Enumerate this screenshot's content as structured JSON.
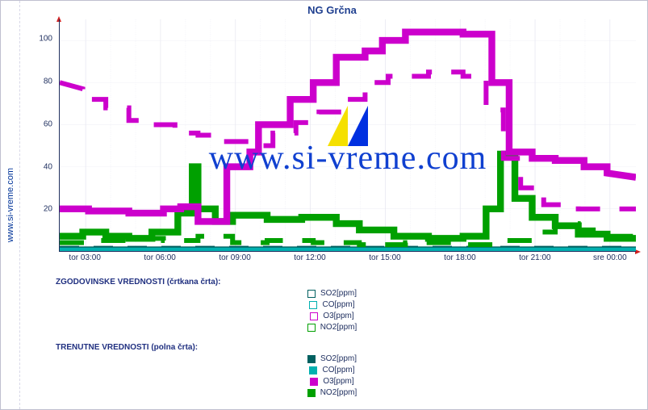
{
  "title": "NG Grčna",
  "side_link": {
    "text": "www.si-vreme.com"
  },
  "watermark": {
    "text": "www.si-vreme.com"
  },
  "legend": {
    "hist_title": "ZGODOVINSKE VREDNOSTI (črtkana črta):",
    "curr_title": "TRENUTNE VREDNOSTI (polna črta):",
    "items": [
      {
        "label": "SO2[ppm]",
        "color": "#006060"
      },
      {
        "label": "CO[ppm]",
        "color": "#00b0b0"
      },
      {
        "label": "O3[ppm]",
        "color": "#cc00cc"
      },
      {
        "label": "NO2[ppm]",
        "color": "#00a000"
      }
    ]
  },
  "chart": {
    "type": "line-step",
    "background_color": "#ffffff",
    "grid_color": "#e6e6f0",
    "border_color": "#c0c0d0",
    "axis_color": "#203060",
    "axis_arrow_color": "#d02020",
    "title_fontsize": 13,
    "label_fontsize": 10,
    "title_color": "#204090",
    "label_color": "#203060",
    "watermark_color": "#1040d0",
    "watermark_fontsize": 42,
    "ylim": [
      0,
      110
    ],
    "ytick_step": 20,
    "yticks": [
      20,
      40,
      60,
      80,
      100
    ],
    "x_categories": [
      "tor 03:00",
      "tor 06:00",
      "tor 09:00",
      "tor 12:00",
      "tor 15:00",
      "tor 18:00",
      "tor 21:00",
      "sre 00:00"
    ],
    "x_major_positions": [
      0.045,
      0.175,
      0.305,
      0.435,
      0.565,
      0.695,
      0.825,
      0.955
    ],
    "series": {
      "O3_current": {
        "color": "#cc00cc",
        "dash": "none",
        "width": 1.4,
        "points": [
          [
            0.0,
            20
          ],
          [
            0.05,
            20
          ],
          [
            0.05,
            19
          ],
          [
            0.12,
            19
          ],
          [
            0.12,
            18
          ],
          [
            0.18,
            18
          ],
          [
            0.18,
            20
          ],
          [
            0.21,
            20
          ],
          [
            0.21,
            21
          ],
          [
            0.24,
            21
          ],
          [
            0.24,
            14
          ],
          [
            0.29,
            14
          ],
          [
            0.29,
            40
          ],
          [
            0.33,
            40
          ],
          [
            0.33,
            47
          ],
          [
            0.345,
            47
          ],
          [
            0.345,
            60
          ],
          [
            0.4,
            60
          ],
          [
            0.4,
            72
          ],
          [
            0.44,
            72
          ],
          [
            0.44,
            80
          ],
          [
            0.48,
            80
          ],
          [
            0.48,
            92
          ],
          [
            0.53,
            92
          ],
          [
            0.53,
            95
          ],
          [
            0.56,
            95
          ],
          [
            0.56,
            100
          ],
          [
            0.6,
            100
          ],
          [
            0.6,
            104
          ],
          [
            0.7,
            104
          ],
          [
            0.7,
            103
          ],
          [
            0.75,
            103
          ],
          [
            0.75,
            80
          ],
          [
            0.78,
            80
          ],
          [
            0.78,
            47
          ],
          [
            0.82,
            47
          ],
          [
            0.82,
            44
          ],
          [
            0.86,
            44
          ],
          [
            0.86,
            43
          ],
          [
            0.91,
            43
          ],
          [
            0.91,
            40
          ],
          [
            0.95,
            40
          ],
          [
            0.95,
            37
          ],
          [
            1.0,
            35
          ]
        ]
      },
      "O3_hist": {
        "color": "#cc00cc",
        "dash": "5,4",
        "width": 1.0,
        "points": [
          [
            0.0,
            80
          ],
          [
            0.04,
            77
          ],
          [
            0.04,
            72
          ],
          [
            0.08,
            72
          ],
          [
            0.08,
            68
          ],
          [
            0.12,
            68
          ],
          [
            0.12,
            62
          ],
          [
            0.16,
            62
          ],
          [
            0.16,
            60
          ],
          [
            0.2,
            60
          ],
          [
            0.2,
            56
          ],
          [
            0.24,
            56
          ],
          [
            0.24,
            55
          ],
          [
            0.28,
            55
          ],
          [
            0.28,
            52
          ],
          [
            0.33,
            52
          ],
          [
            0.33,
            50
          ],
          [
            0.37,
            50
          ],
          [
            0.37,
            56
          ],
          [
            0.41,
            56
          ],
          [
            0.41,
            61
          ],
          [
            0.45,
            61
          ],
          [
            0.45,
            66
          ],
          [
            0.49,
            66
          ],
          [
            0.49,
            72
          ],
          [
            0.53,
            72
          ],
          [
            0.53,
            80
          ],
          [
            0.57,
            80
          ],
          [
            0.57,
            83
          ],
          [
            0.64,
            83
          ],
          [
            0.64,
            85
          ],
          [
            0.7,
            85
          ],
          [
            0.7,
            83
          ],
          [
            0.74,
            83
          ],
          [
            0.74,
            67
          ],
          [
            0.77,
            67
          ],
          [
            0.77,
            44
          ],
          [
            0.8,
            44
          ],
          [
            0.8,
            30
          ],
          [
            0.84,
            30
          ],
          [
            0.84,
            22
          ],
          [
            0.9,
            22
          ],
          [
            0.9,
            20
          ],
          [
            1.0,
            20
          ]
        ]
      },
      "NO2_current": {
        "color": "#00a000",
        "dash": "none",
        "width": 1.4,
        "points": [
          [
            0.0,
            7
          ],
          [
            0.04,
            7
          ],
          [
            0.04,
            9
          ],
          [
            0.08,
            9
          ],
          [
            0.08,
            7
          ],
          [
            0.12,
            7
          ],
          [
            0.12,
            6
          ],
          [
            0.16,
            6
          ],
          [
            0.16,
            9
          ],
          [
            0.205,
            9
          ],
          [
            0.205,
            18
          ],
          [
            0.23,
            18
          ],
          [
            0.23,
            40
          ],
          [
            0.24,
            40
          ],
          [
            0.24,
            20
          ],
          [
            0.27,
            20
          ],
          [
            0.27,
            14
          ],
          [
            0.3,
            14
          ],
          [
            0.3,
            17
          ],
          [
            0.36,
            17
          ],
          [
            0.36,
            15
          ],
          [
            0.42,
            15
          ],
          [
            0.42,
            16
          ],
          [
            0.48,
            16
          ],
          [
            0.48,
            13
          ],
          [
            0.52,
            13
          ],
          [
            0.52,
            10
          ],
          [
            0.58,
            10
          ],
          [
            0.58,
            7
          ],
          [
            0.64,
            7
          ],
          [
            0.64,
            6
          ],
          [
            0.7,
            6
          ],
          [
            0.7,
            7
          ],
          [
            0.74,
            7
          ],
          [
            0.74,
            20
          ],
          [
            0.765,
            20
          ],
          [
            0.765,
            46
          ],
          [
            0.79,
            46
          ],
          [
            0.79,
            25
          ],
          [
            0.82,
            25
          ],
          [
            0.82,
            16
          ],
          [
            0.86,
            16
          ],
          [
            0.86,
            12
          ],
          [
            0.9,
            12
          ],
          [
            0.9,
            8
          ],
          [
            0.95,
            8
          ],
          [
            0.95,
            6
          ],
          [
            1.0,
            6
          ]
        ]
      },
      "NO2_hist": {
        "color": "#00a000",
        "dash": "5,4",
        "width": 1.0,
        "points": [
          [
            0.0,
            4
          ],
          [
            0.06,
            4
          ],
          [
            0.06,
            5
          ],
          [
            0.12,
            5
          ],
          [
            0.12,
            6
          ],
          [
            0.18,
            6
          ],
          [
            0.18,
            5
          ],
          [
            0.24,
            5
          ],
          [
            0.24,
            7
          ],
          [
            0.3,
            7
          ],
          [
            0.3,
            4
          ],
          [
            0.36,
            4
          ],
          [
            0.36,
            5
          ],
          [
            0.44,
            5
          ],
          [
            0.44,
            4
          ],
          [
            0.52,
            4
          ],
          [
            0.52,
            3
          ],
          [
            0.6,
            3
          ],
          [
            0.6,
            4
          ],
          [
            0.68,
            4
          ],
          [
            0.68,
            3
          ],
          [
            0.76,
            3
          ],
          [
            0.76,
            5
          ],
          [
            0.82,
            5
          ],
          [
            0.82,
            9
          ],
          [
            0.86,
            9
          ],
          [
            0.86,
            13
          ],
          [
            0.9,
            13
          ],
          [
            0.9,
            10
          ],
          [
            0.95,
            10
          ],
          [
            0.95,
            7
          ],
          [
            1.0,
            7
          ]
        ]
      },
      "SO2_current": {
        "color": "#006060",
        "dash": "none",
        "width": 1.0,
        "points": [
          [
            0.0,
            1
          ],
          [
            1.0,
            1
          ]
        ]
      },
      "SO2_hist": {
        "color": "#006060",
        "dash": "4,3",
        "width": 0.8,
        "points": [
          [
            0.0,
            1.5
          ],
          [
            1.0,
            1.5
          ]
        ]
      },
      "CO_current": {
        "color": "#00b0b0",
        "dash": "none",
        "width": 1.0,
        "points": [
          [
            0.0,
            0.5
          ],
          [
            1.0,
            0.5
          ]
        ]
      },
      "CO_hist": {
        "color": "#00b0b0",
        "dash": "4,3",
        "width": 0.8,
        "points": [
          [
            0.0,
            0.8
          ],
          [
            1.0,
            0.8
          ]
        ]
      }
    },
    "draw_order": [
      "SO2_hist",
      "CO_hist",
      "SO2_current",
      "CO_current",
      "NO2_hist",
      "NO2_current",
      "O3_hist",
      "O3_current"
    ]
  }
}
